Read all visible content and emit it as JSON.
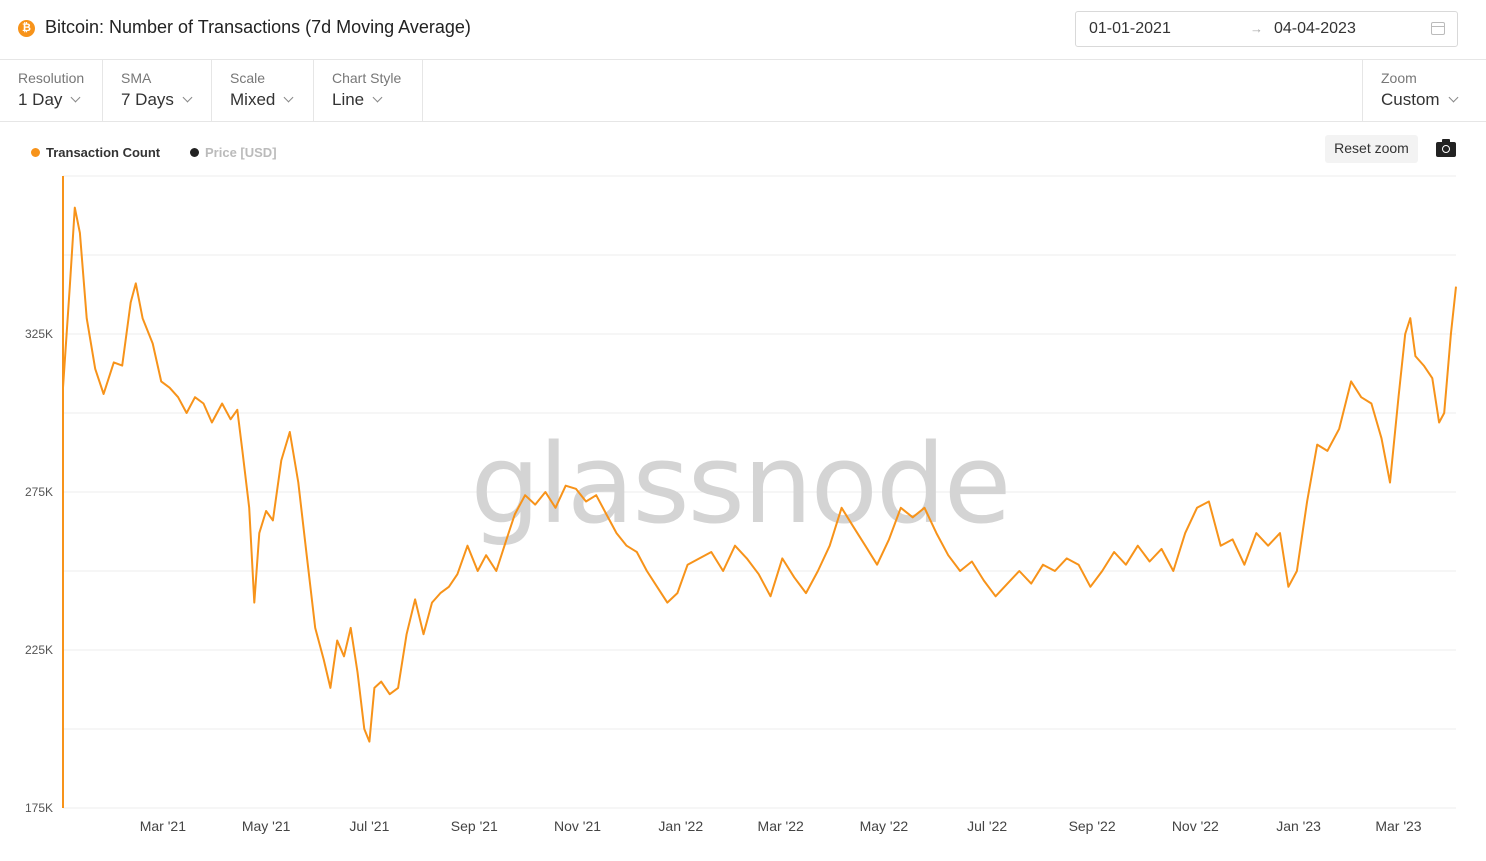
{
  "header": {
    "title": "Bitcoin: Number of Transactions (7d Moving Average)",
    "date_from": "01-01-2021",
    "date_arrow": "→",
    "date_to": "04-04-2023",
    "icon_letter": "₿"
  },
  "controls": [
    {
      "label": "Resolution",
      "value": "1 Day"
    },
    {
      "label": "SMA",
      "value": "7 Days"
    },
    {
      "label": "Scale",
      "value": "Mixed"
    },
    {
      "label": "Chart Style",
      "value": "Line"
    }
  ],
  "zoom": {
    "label": "Zoom",
    "value": "Custom"
  },
  "reset_zoom_label": "Reset zoom",
  "watermark": "glassnode",
  "colors": {
    "series": "#f7931a",
    "price_dot": "#222222",
    "price_text": "#bbbbbb"
  },
  "chart_data": {
    "type": "line",
    "title": "Bitcoin: Number of Transactions (7d Moving Average)",
    "legend": [
      {
        "name": "Transaction Count",
        "color": "#f7931a",
        "visible": true
      },
      {
        "name": "Price [USD]",
        "color": "#222222",
        "visible": false
      }
    ],
    "legend_position": "top-left",
    "x_range": [
      "2021-01-01",
      "2023-04-04"
    ],
    "x_ticks": [
      "Mar '21",
      "May '21",
      "Jul '21",
      "Sep '21",
      "Nov '21",
      "Jan '22",
      "Mar '22",
      "May '22",
      "Jul '22",
      "Sep '22",
      "Nov '22",
      "Jan '23",
      "Mar '23"
    ],
    "y_ticks": [
      "175K",
      "225K",
      "275K",
      "325K"
    ],
    "y_range": [
      175000,
      375000
    ],
    "grid": true,
    "series": [
      {
        "name": "Transaction Count",
        "points": [
          [
            "2021-01-01",
            308000
          ],
          [
            "2021-01-05",
            340000
          ],
          [
            "2021-01-08",
            365000
          ],
          [
            "2021-01-11",
            357000
          ],
          [
            "2021-01-15",
            330000
          ],
          [
            "2021-01-20",
            314000
          ],
          [
            "2021-01-25",
            306000
          ],
          [
            "2021-01-31",
            316000
          ],
          [
            "2021-02-05",
            315000
          ],
          [
            "2021-02-10",
            335000
          ],
          [
            "2021-02-13",
            341000
          ],
          [
            "2021-02-17",
            330000
          ],
          [
            "2021-02-23",
            322000
          ],
          [
            "2021-02-28",
            310000
          ],
          [
            "2021-03-05",
            308000
          ],
          [
            "2021-03-10",
            305000
          ],
          [
            "2021-03-15",
            300000
          ],
          [
            "2021-03-20",
            305000
          ],
          [
            "2021-03-25",
            303000
          ],
          [
            "2021-03-30",
            297000
          ],
          [
            "2021-04-05",
            303000
          ],
          [
            "2021-04-10",
            298000
          ],
          [
            "2021-04-14",
            301000
          ],
          [
            "2021-04-17",
            288000
          ],
          [
            "2021-04-21",
            270000
          ],
          [
            "2021-04-24",
            240000
          ],
          [
            "2021-04-27",
            262000
          ],
          [
            "2021-05-01",
            269000
          ],
          [
            "2021-05-05",
            266000
          ],
          [
            "2021-05-10",
            285000
          ],
          [
            "2021-05-15",
            294000
          ],
          [
            "2021-05-20",
            278000
          ],
          [
            "2021-05-25",
            255000
          ],
          [
            "2021-05-30",
            232000
          ],
          [
            "2021-06-04",
            222000
          ],
          [
            "2021-06-08",
            213000
          ],
          [
            "2021-06-12",
            228000
          ],
          [
            "2021-06-16",
            223000
          ],
          [
            "2021-06-20",
            232000
          ],
          [
            "2021-06-24",
            218000
          ],
          [
            "2021-06-28",
            200000
          ],
          [
            "2021-07-01",
            196000
          ],
          [
            "2021-07-04",
            213000
          ],
          [
            "2021-07-08",
            215000
          ],
          [
            "2021-07-13",
            211000
          ],
          [
            "2021-07-18",
            213000
          ],
          [
            "2021-07-23",
            230000
          ],
          [
            "2021-07-28",
            241000
          ],
          [
            "2021-08-02",
            230000
          ],
          [
            "2021-08-07",
            240000
          ],
          [
            "2021-08-12",
            243000
          ],
          [
            "2021-08-17",
            245000
          ],
          [
            "2021-08-22",
            249000
          ],
          [
            "2021-08-28",
            258000
          ],
          [
            "2021-09-03",
            250000
          ],
          [
            "2021-09-08",
            255000
          ],
          [
            "2021-09-14",
            250000
          ],
          [
            "2021-09-20",
            260000
          ],
          [
            "2021-09-25",
            268000
          ],
          [
            "2021-10-01",
            274000
          ],
          [
            "2021-10-07",
            271000
          ],
          [
            "2021-10-13",
            275000
          ],
          [
            "2021-10-19",
            270000
          ],
          [
            "2021-10-25",
            277000
          ],
          [
            "2021-10-31",
            276000
          ],
          [
            "2021-11-06",
            272000
          ],
          [
            "2021-11-12",
            274000
          ],
          [
            "2021-11-18",
            268000
          ],
          [
            "2021-11-24",
            262000
          ],
          [
            "2021-11-30",
            258000
          ],
          [
            "2021-12-06",
            256000
          ],
          [
            "2021-12-12",
            250000
          ],
          [
            "2021-12-18",
            245000
          ],
          [
            "2021-12-24",
            240000
          ],
          [
            "2021-12-30",
            243000
          ],
          [
            "2022-01-05",
            252000
          ],
          [
            "2022-01-12",
            254000
          ],
          [
            "2022-01-19",
            256000
          ],
          [
            "2022-01-26",
            250000
          ],
          [
            "2022-02-02",
            258000
          ],
          [
            "2022-02-09",
            254000
          ],
          [
            "2022-02-16",
            249000
          ],
          [
            "2022-02-23",
            242000
          ],
          [
            "2022-03-02",
            254000
          ],
          [
            "2022-03-09",
            248000
          ],
          [
            "2022-03-16",
            243000
          ],
          [
            "2022-03-23",
            250000
          ],
          [
            "2022-03-30",
            258000
          ],
          [
            "2022-04-06",
            270000
          ],
          [
            "2022-04-13",
            264000
          ],
          [
            "2022-04-20",
            258000
          ],
          [
            "2022-04-27",
            252000
          ],
          [
            "2022-05-04",
            260000
          ],
          [
            "2022-05-11",
            270000
          ],
          [
            "2022-05-18",
            267000
          ],
          [
            "2022-05-25",
            270000
          ],
          [
            "2022-06-01",
            262000
          ],
          [
            "2022-06-08",
            255000
          ],
          [
            "2022-06-15",
            250000
          ],
          [
            "2022-06-22",
            253000
          ],
          [
            "2022-06-29",
            247000
          ],
          [
            "2022-07-06",
            242000
          ],
          [
            "2022-07-13",
            246000
          ],
          [
            "2022-07-20",
            250000
          ],
          [
            "2022-07-27",
            246000
          ],
          [
            "2022-08-03",
            252000
          ],
          [
            "2022-08-10",
            250000
          ],
          [
            "2022-08-17",
            254000
          ],
          [
            "2022-08-24",
            252000
          ],
          [
            "2022-08-31",
            245000
          ],
          [
            "2022-09-07",
            250000
          ],
          [
            "2022-09-14",
            256000
          ],
          [
            "2022-09-21",
            252000
          ],
          [
            "2022-09-28",
            258000
          ],
          [
            "2022-10-05",
            253000
          ],
          [
            "2022-10-12",
            257000
          ],
          [
            "2022-10-19",
            250000
          ],
          [
            "2022-10-26",
            262000
          ],
          [
            "2022-11-02",
            270000
          ],
          [
            "2022-11-09",
            272000
          ],
          [
            "2022-11-16",
            258000
          ],
          [
            "2022-11-23",
            260000
          ],
          [
            "2022-11-30",
            252000
          ],
          [
            "2022-12-07",
            262000
          ],
          [
            "2022-12-14",
            258000
          ],
          [
            "2022-12-21",
            262000
          ],
          [
            "2022-12-26",
            245000
          ],
          [
            "2022-12-31",
            250000
          ],
          [
            "2023-01-06",
            272000
          ],
          [
            "2023-01-12",
            290000
          ],
          [
            "2023-01-18",
            288000
          ],
          [
            "2023-01-25",
            295000
          ],
          [
            "2023-02-01",
            310000
          ],
          [
            "2023-02-07",
            305000
          ],
          [
            "2023-02-13",
            303000
          ],
          [
            "2023-02-19",
            292000
          ],
          [
            "2023-02-24",
            278000
          ],
          [
            "2023-03-01",
            305000
          ],
          [
            "2023-03-05",
            325000
          ],
          [
            "2023-03-08",
            330000
          ],
          [
            "2023-03-11",
            318000
          ],
          [
            "2023-03-16",
            315000
          ],
          [
            "2023-03-21",
            311000
          ],
          [
            "2023-03-25",
            297000
          ],
          [
            "2023-03-28",
            300000
          ],
          [
            "2023-04-01",
            325000
          ],
          [
            "2023-04-04",
            340000
          ]
        ]
      }
    ]
  }
}
